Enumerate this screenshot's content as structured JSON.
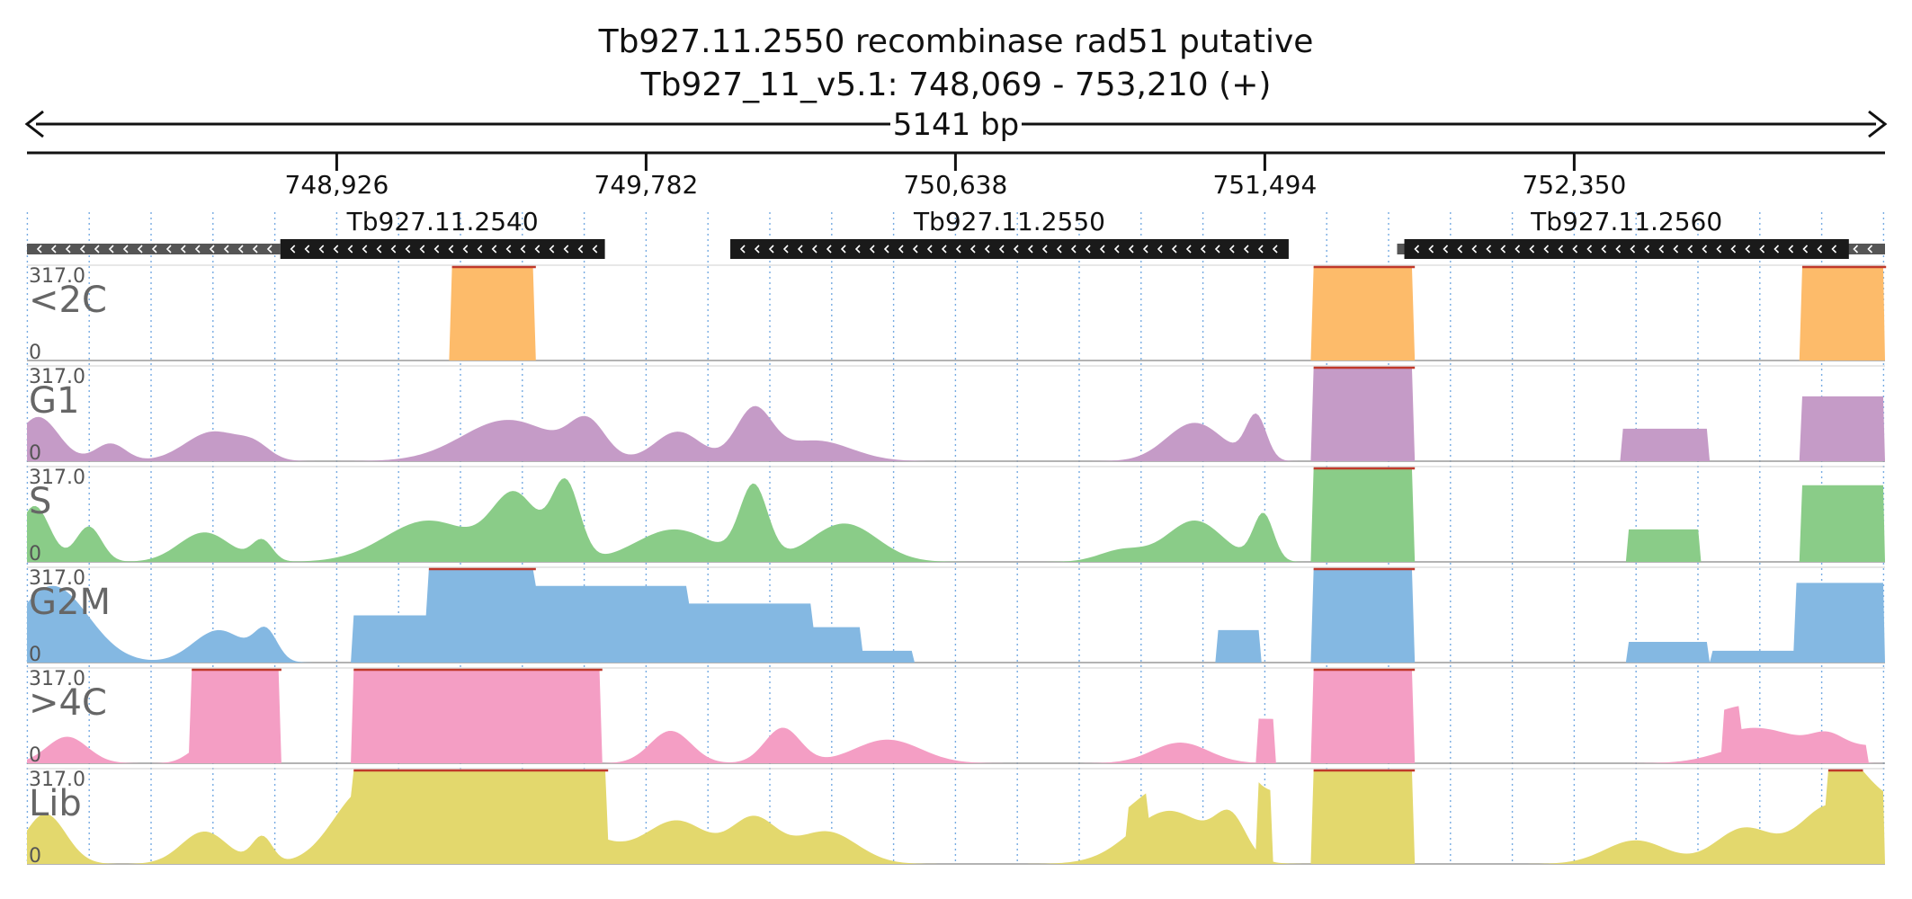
{
  "chart_data": {
    "type": "area",
    "title": "Tb927.11.2550  recombinase rad51  putative",
    "subtitle": "Tb927_11_v5.1: 748,069 - 753,210 (+)",
    "span_label": "5141 bp",
    "xlim": [
      748069,
      753210
    ],
    "ticks": [
      {
        "pos": 748926,
        "label": "748,926"
      },
      {
        "pos": 749782,
        "label": "749,782"
      },
      {
        "pos": 750638,
        "label": "750,638"
      },
      {
        "pos": 751494,
        "label": "751,494"
      },
      {
        "pos": 752350,
        "label": "752,350"
      }
    ],
    "genes": [
      {
        "name": "Tb927.11.2540",
        "utr": [
          748069,
          748770
        ],
        "cds": [
          748770,
          749668
        ]
      },
      {
        "name": "Tb927.11.2550",
        "utr": null,
        "cds": [
          750015,
          751560
        ]
      },
      {
        "name": "Tb927.11.2560",
        "utr": [
          751860,
          753210
        ],
        "cds": [
          751880,
          753110
        ]
      }
    ],
    "tracks": [
      {
        "name": "<2C",
        "max": "317.0",
        "min": "0",
        "color": "#fdbb6a"
      },
      {
        "name": "G1",
        "max": "317.0",
        "min": "0",
        "color": "#c59bc7"
      },
      {
        "name": "S",
        "max": "317.0",
        "min": "0",
        "color": "#8acc88"
      },
      {
        "name": "G2M",
        "max": "317.0",
        "min": "0",
        "color": "#84b8e2"
      },
      {
        "name": ">4C",
        "max": "317.0",
        "min": "0",
        "color": "#f49ec4"
      },
      {
        "name": "Lib",
        "max": "317.0",
        "min": "0",
        "color": "#e3d86d"
      }
    ],
    "ylim": [
      0,
      317
    ],
    "grid": true,
    "clip_color": "#c0392b"
  }
}
